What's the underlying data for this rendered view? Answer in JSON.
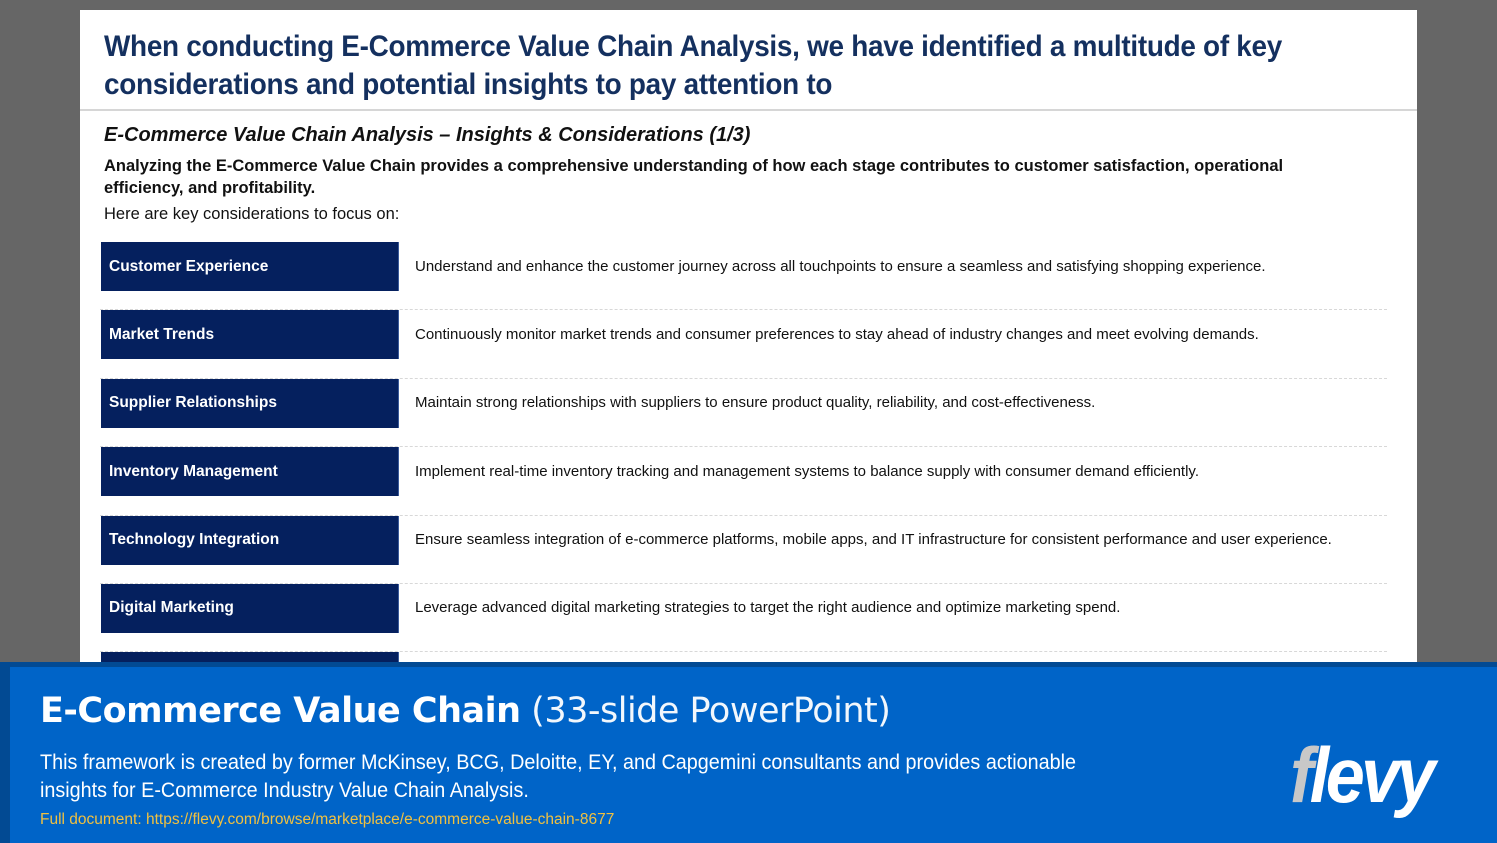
{
  "slide": {
    "title": "When conducting E-Commerce Value Chain Analysis, we have identified a multitude of key considerations and potential insights to pay attention to",
    "subtitle": "E-Commerce Value Chain Analysis – Insights & Considerations (1/3)",
    "intro_bold": "Analyzing the E-Commerce Value Chain provides a comprehensive understanding of how each stage contributes to customer satisfaction, operational efficiency, and profitability.",
    "intro_plain": "Here are key considerations to focus on:",
    "rows": [
      {
        "label": "Customer Experience",
        "desc": "Understand and enhance the customer journey across all touchpoints to ensure a seamless and satisfying shopping experience."
      },
      {
        "label": "Market Trends",
        "desc": "Continuously monitor market trends and consumer preferences to stay ahead of industry changes and meet evolving demands."
      },
      {
        "label": "Supplier Relationships",
        "desc": "Maintain strong relationships with suppliers to ensure product quality, reliability, and cost-effectiveness."
      },
      {
        "label": "Inventory Management",
        "desc": "Implement real-time inventory tracking and management systems to balance supply with consumer demand efficiently."
      },
      {
        "label": "Technology Integration",
        "desc": "Ensure seamless integration of e-commerce platforms, mobile apps, and IT infrastructure for consistent performance and user experience."
      },
      {
        "label": "Digital Marketing",
        "desc": "Leverage advanced digital marketing strategies to target the right audience and optimize marketing spend."
      },
      {
        "label": "",
        "desc": ""
      }
    ]
  },
  "banner": {
    "title_bold": "E-Commerce Value Chain",
    "title_light": " (33-slide PowerPoint)",
    "description": "This framework is created by former McKinsey, BCG, Deloitte, EY, and Capgemini consultants and provides actionable insights for E-Commerce Industry Value Chain Analysis.",
    "link": "Full document: https://flevy.com/browse/marketplace/e-commerce-value-chain-8677",
    "logo_f": "f",
    "logo_rest": "levy"
  },
  "colors": {
    "navy": "#05205e",
    "title": "#14305f",
    "banner": "#0064c8",
    "link": "#f0c040"
  }
}
